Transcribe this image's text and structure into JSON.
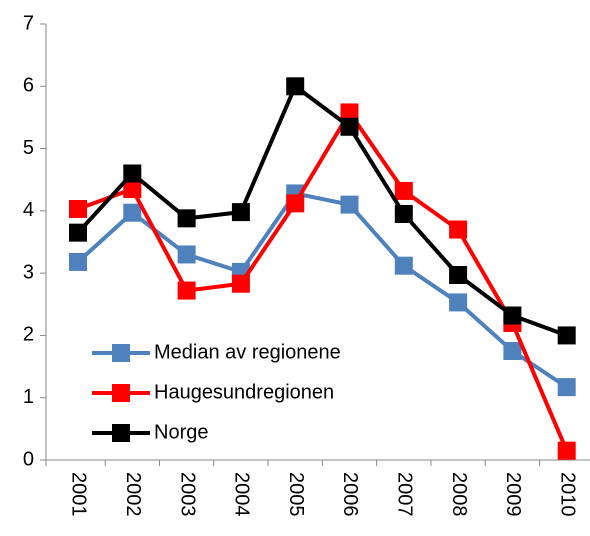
{
  "chart_data": {
    "type": "line",
    "categories": [
      "2001",
      "2002",
      "2003",
      "2004",
      "2005",
      "2006",
      "2007",
      "2008",
      "2009",
      "2010"
    ],
    "series": [
      {
        "name": "Median av regionene",
        "color": "#4f81bd",
        "values": [
          3.18,
          3.97,
          3.3,
          3.02,
          4.28,
          4.1,
          3.12,
          2.53,
          1.75,
          1.17
        ]
      },
      {
        "name": "Haugesundregionen",
        "color": "#ff0000",
        "values": [
          4.03,
          4.35,
          2.72,
          2.83,
          4.12,
          5.58,
          4.32,
          3.7,
          2.2,
          0.15
        ]
      },
      {
        "name": "Norge",
        "color": "#000000",
        "values": [
          3.65,
          4.6,
          3.88,
          3.98,
          6.0,
          5.35,
          3.95,
          2.97,
          2.32,
          2.0
        ]
      }
    ],
    "ylim": [
      0,
      7
    ],
    "yticks": [
      0,
      1,
      2,
      3,
      4,
      5,
      6,
      7
    ],
    "grid": false,
    "legend": "lower left"
  }
}
